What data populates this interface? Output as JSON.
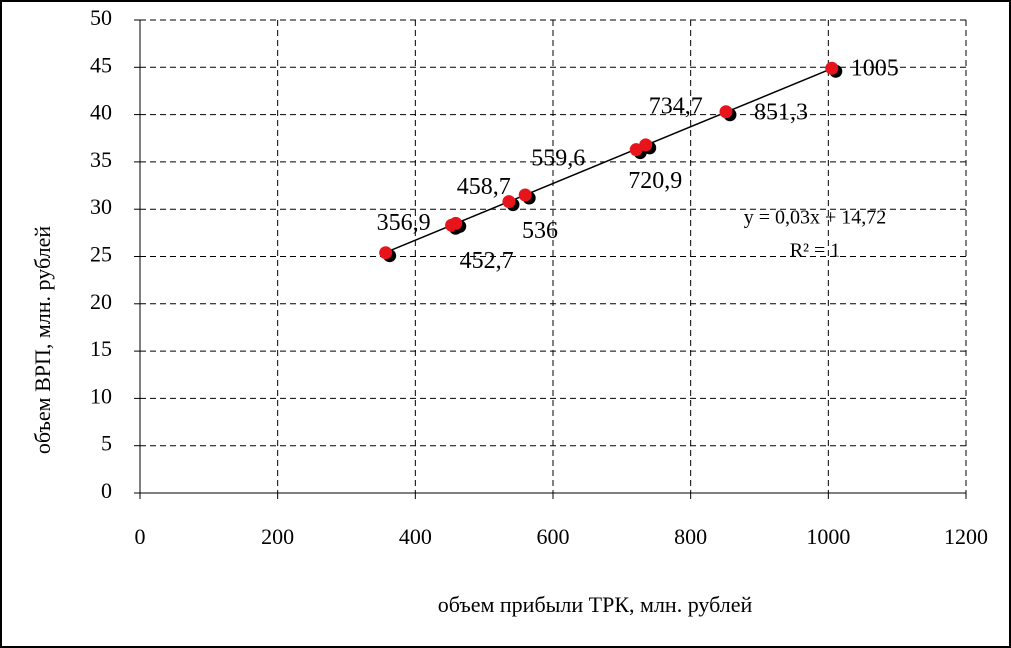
{
  "chart_data": {
    "type": "scatter",
    "x_label": "объем прибыли ТРК, млн. рублей",
    "y_label": "объем  ВРП, млн. рублей",
    "series": [
      {
        "color": "#e8141b",
        "x": [
          356.9,
          452.7,
          458.7,
          536,
          559.6,
          720.9,
          734.7,
          851.3,
          1005
        ],
        "x_labels": [
          "356,9",
          "452,7",
          "458,7",
          "536",
          "559,6",
          "720,9",
          "734,7",
          "851,3",
          "1005"
        ],
        "values": [
          25.4,
          28.3,
          28.5,
          30.8,
          31.5,
          36.3,
          36.8,
          40.3,
          44.9
        ]
      }
    ],
    "trendline": {
      "slope": 0.03,
      "intercept": 14.72,
      "equation": "y = 0,03x + 14,72",
      "r2": "R² = 1"
    },
    "xlim": [
      0,
      1200
    ],
    "xticks": [
      0,
      200,
      400,
      600,
      800,
      1000,
      1200
    ],
    "ylim": [
      0,
      50
    ],
    "yticks": [
      0,
      5,
      10,
      15,
      20,
      25,
      30,
      35,
      40,
      45,
      50
    ],
    "grid": true
  }
}
